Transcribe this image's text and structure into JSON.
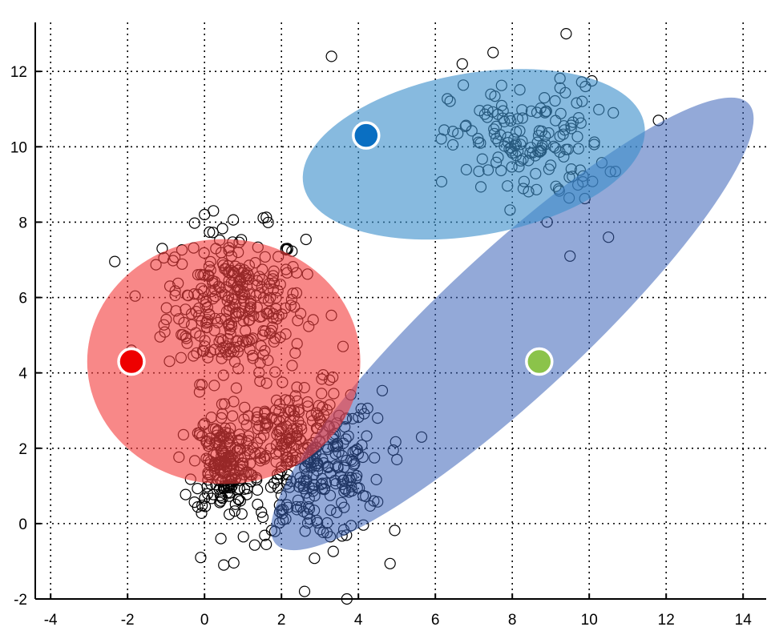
{
  "chart_data": {
    "type": "scatter",
    "title": "",
    "xlabel": "",
    "ylabel": "",
    "xlim": [
      -4.4,
      14.6
    ],
    "ylim": [
      -2.0,
      13.3
    ],
    "grid": true,
    "x_ticks": [
      -4,
      -2,
      0,
      2,
      4,
      6,
      8,
      10,
      12,
      14
    ],
    "y_ticks": [
      -2,
      0,
      2,
      4,
      6,
      8,
      10,
      12
    ],
    "point_marker": "open-circle",
    "point_color": "#000000",
    "clusters": [
      {
        "center": [
          0.8,
          5.8
        ],
        "spread": [
          0.9,
          1.0
        ],
        "count": 300
      },
      {
        "center": [
          2.8,
          1.5
        ],
        "spread": [
          0.9,
          1.0
        ],
        "count": 300
      },
      {
        "center": [
          0.5,
          1.6
        ],
        "spread": [
          0.4,
          0.7
        ],
        "count": 180
      },
      {
        "center": [
          8.4,
          10.1
        ],
        "spread": [
          1.0,
          0.8
        ],
        "count": 150
      },
      {
        "center": [
          1.8,
          2.6
        ],
        "spread": [
          0.4,
          0.4
        ],
        "count": 40
      }
    ],
    "sample_points": [
      [
        9.4,
        13.0
      ],
      [
        7.5,
        12.5
      ],
      [
        6.7,
        12.2
      ],
      [
        9.9,
        11.6
      ],
      [
        11.8,
        10.7
      ],
      [
        10.5,
        7.6
      ],
      [
        9.5,
        7.1
      ],
      [
        3.3,
        12.4
      ],
      [
        3.7,
        -2.0
      ],
      [
        2.6,
        -1.8
      ],
      [
        0.5,
        -1.1
      ],
      [
        -0.1,
        -0.9
      ],
      [
        -1.9,
        4.6
      ],
      [
        -0.9,
        6.3
      ],
      [
        -1.1,
        7.3
      ],
      [
        0.0,
        8.2
      ],
      [
        3.6,
        4.7
      ],
      [
        4.5,
        2.8
      ],
      [
        5.0,
        1.7
      ],
      [
        4.4,
        0.6
      ]
    ],
    "ellipses": [
      {
        "center": [
          8.0,
          5.3
        ],
        "semi_axes": [
          8.4,
          1.9
        ],
        "angle_deg": 43,
        "color": "#3a63b8",
        "opacity": 0.55
      },
      {
        "center": [
          7.0,
          9.8
        ],
        "semi_axes": [
          4.5,
          2.15
        ],
        "angle_deg": 10,
        "color": "#3d8fcc",
        "opacity": 0.62
      },
      {
        "center": [
          0.5,
          4.3
        ],
        "semi_axes": [
          3.55,
          3.25
        ],
        "angle_deg": 0,
        "color": "#f33f3f",
        "opacity": 0.62
      }
    ],
    "centroids": [
      {
        "x": -1.9,
        "y": 4.3,
        "color": "#ee0000"
      },
      {
        "x": 4.2,
        "y": 10.3,
        "color": "#0a6fc2"
      },
      {
        "x": 8.7,
        "y": 4.3,
        "color": "#8bc34a"
      }
    ]
  }
}
